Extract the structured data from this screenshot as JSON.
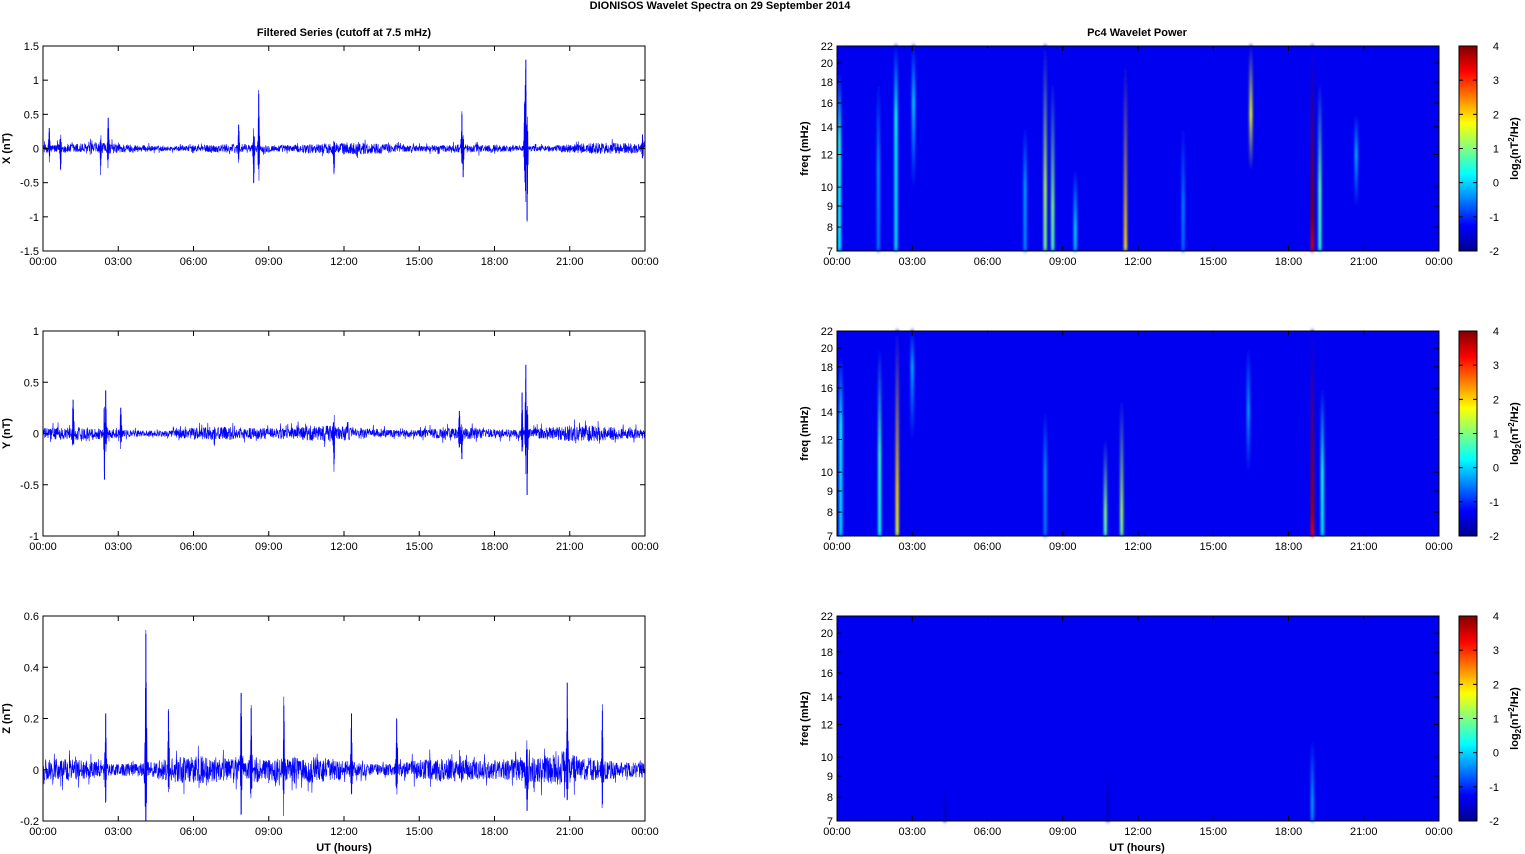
{
  "figure": {
    "title": "DIONISOS Wavelet Spectra on 29 September 2014",
    "left_column_title": "Filtered Series (cutoff at 7.5 mHz)",
    "right_column_title": "Pc4 Wavelet Power",
    "time_xlabel": "UT (hours)",
    "freq_ylabel": "freq (mHz)",
    "colorbar_label_base": "log",
    "colorbar_label_sub": "2",
    "colorbar_label_rest_a": "(nT",
    "colorbar_label_sup": "2",
    "colorbar_label_rest_b": "/Hz)"
  },
  "chart_data": [
    {
      "type": "line",
      "panel": "X",
      "ylabel": "X (nT)",
      "series_color": "#0000ff",
      "x_ticks": [
        "00:00",
        "03:00",
        "06:00",
        "09:00",
        "12:00",
        "15:00",
        "18:00",
        "21:00",
        "00:00"
      ],
      "x_range_hours": [
        0,
        24
      ],
      "ylim": [
        -1.5,
        1.5
      ],
      "y_ticks": [
        1.5,
        1,
        0.5,
        0,
        -0.5,
        -1,
        -1.5
      ],
      "y_tick_labels": [
        "1.5",
        "1",
        "0.5",
        "0",
        "-0.5",
        "-1",
        "-1.5"
      ],
      "noise_amplitude": 0.09,
      "spikes": [
        {
          "t": 0.25,
          "a": 0.3
        },
        {
          "t": 0.7,
          "a": -0.3
        },
        {
          "t": 2.6,
          "a": 0.45
        },
        {
          "t": 2.3,
          "a": -0.25
        },
        {
          "t": 8.6,
          "a": 0.8
        },
        {
          "t": 8.4,
          "a": -0.5
        },
        {
          "t": 7.8,
          "a": 0.35
        },
        {
          "t": 11.6,
          "a": -0.35
        },
        {
          "t": 16.7,
          "a": 0.5
        },
        {
          "t": 16.75,
          "a": -0.42
        },
        {
          "t": 19.25,
          "a": 1.3
        },
        {
          "t": 19.3,
          "a": -1.05
        },
        {
          "t": 19.2,
          "a": 0.65
        },
        {
          "t": 23.9,
          "a": 0.2
        }
      ]
    },
    {
      "type": "line",
      "panel": "Y",
      "ylabel": "Y (nT)",
      "series_color": "#0000ff",
      "x_ticks": [
        "00:00",
        "03:00",
        "06:00",
        "09:00",
        "12:00",
        "15:00",
        "18:00",
        "21:00",
        "00:00"
      ],
      "x_range_hours": [
        0,
        24
      ],
      "ylim": [
        -1,
        1
      ],
      "y_ticks": [
        1,
        0.5,
        0,
        -0.5,
        -1
      ],
      "y_tick_labels": [
        "1",
        "0.5",
        "0",
        "-0.5",
        "-1"
      ],
      "noise_amplitude": 0.08,
      "spikes": [
        {
          "t": 1.2,
          "a": 0.33
        },
        {
          "t": 2.5,
          "a": 0.42
        },
        {
          "t": 2.45,
          "a": -0.45
        },
        {
          "t": 3.1,
          "a": 0.25
        },
        {
          "t": 11.6,
          "a": -0.3
        },
        {
          "t": 16.6,
          "a": 0.22
        },
        {
          "t": 16.7,
          "a": -0.25
        },
        {
          "t": 19.25,
          "a": 0.67
        },
        {
          "t": 19.3,
          "a": -0.6
        },
        {
          "t": 19.1,
          "a": 0.4
        }
      ]
    },
    {
      "type": "line",
      "panel": "Z",
      "ylabel": "Z (nT)",
      "series_color": "#0000ff",
      "x_ticks": [
        "00:00",
        "03:00",
        "06:00",
        "09:00",
        "12:00",
        "15:00",
        "18:00",
        "21:00",
        "00:00"
      ],
      "x_range_hours": [
        0,
        24
      ],
      "ylim": [
        -0.2,
        0.6
      ],
      "y_ticks": [
        0.6,
        0.4,
        0.2,
        0,
        -0.2
      ],
      "y_tick_labels": [
        "0.6",
        "0.4",
        "0.2",
        "0",
        "-0.2"
      ],
      "noise_amplitude": 0.06,
      "spikes": [
        {
          "t": 4.1,
          "a": 0.53
        },
        {
          "t": 2.5,
          "a": 0.22
        },
        {
          "t": 5.0,
          "a": 0.23
        },
        {
          "t": 7.9,
          "a": 0.3
        },
        {
          "t": 8.3,
          "a": 0.24
        },
        {
          "t": 9.6,
          "a": 0.25
        },
        {
          "t": 20.9,
          "a": 0.34
        },
        {
          "t": 22.3,
          "a": 0.23
        },
        {
          "t": 19.3,
          "a": -0.16
        },
        {
          "t": 12.3,
          "a": 0.22
        },
        {
          "t": 14.1,
          "a": 0.2
        }
      ]
    },
    {
      "type": "heatmap",
      "panel": "X wavelet power",
      "ylabel": "freq (mHz)",
      "x_ticks": [
        "00:00",
        "03:00",
        "06:00",
        "09:00",
        "12:00",
        "15:00",
        "18:00",
        "21:00",
        "00:00"
      ],
      "x_range_hours": [
        0,
        24
      ],
      "y_ticks": [
        22,
        20,
        18,
        16,
        14,
        12,
        10,
        9,
        8,
        7
      ],
      "y_tick_labels": [
        "22",
        "20",
        "18",
        "16",
        "14",
        "12",
        "10",
        "9",
        "8",
        "7"
      ],
      "ylim_mhz": [
        7,
        22
      ],
      "y_scale": "log",
      "colorbar": {
        "range": [
          -2,
          4
        ],
        "ticks": [
          "4",
          "3",
          "2",
          "1",
          "0",
          "-1",
          "-2"
        ]
      },
      "background_level": -2,
      "streaks": [
        {
          "t": 0.1,
          "fmin": 7,
          "fmax": 19,
          "peak": 0.5,
          "fpk": 13
        },
        {
          "t": 1.65,
          "fmin": 7,
          "fmax": 18,
          "peak": -0.4,
          "fpk": 11
        },
        {
          "t": 2.35,
          "fmin": 7,
          "fmax": 22,
          "peak": 0.3,
          "fpk": 15
        },
        {
          "t": 3.05,
          "fmin": 10,
          "fmax": 22,
          "peak": 0.0,
          "fpk": 16
        },
        {
          "t": 7.5,
          "fmin": 7,
          "fmax": 14,
          "peak": -0.3,
          "fpk": 10
        },
        {
          "t": 8.3,
          "fmin": 7,
          "fmax": 22,
          "peak": 1.3,
          "fpk": 10
        },
        {
          "t": 8.6,
          "fmin": 7,
          "fmax": 18,
          "peak": 1.0,
          "fpk": 9
        },
        {
          "t": 9.5,
          "fmin": 7,
          "fmax": 11,
          "peak": 0.0,
          "fpk": 8
        },
        {
          "t": 11.5,
          "fmin": 7,
          "fmax": 20,
          "peak": 2.0,
          "fpk": 7.3
        },
        {
          "t": 13.8,
          "fmin": 7,
          "fmax": 14,
          "peak": -0.5,
          "fpk": 9
        },
        {
          "t": 16.5,
          "fmin": 11,
          "fmax": 22,
          "peak": 1.6,
          "fpk": 15
        },
        {
          "t": 18.95,
          "fmin": 7,
          "fmax": 22,
          "peak": 4.0,
          "fpk": 8.5
        },
        {
          "t": 19.25,
          "fmin": 7,
          "fmax": 18,
          "peak": 0.8,
          "fpk": 10
        },
        {
          "t": 20.7,
          "fmin": 9,
          "fmax": 15,
          "peak": -0.2,
          "fpk": 12
        }
      ]
    },
    {
      "type": "heatmap",
      "panel": "Y wavelet power",
      "ylabel": "freq (mHz)",
      "x_ticks": [
        "00:00",
        "03:00",
        "06:00",
        "09:00",
        "12:00",
        "15:00",
        "18:00",
        "21:00",
        "00:00"
      ],
      "x_range_hours": [
        0,
        24
      ],
      "y_ticks": [
        22,
        20,
        18,
        16,
        14,
        12,
        10,
        9,
        8,
        7
      ],
      "y_tick_labels": [
        "22",
        "20",
        "18",
        "16",
        "14",
        "12",
        "10",
        "9",
        "8",
        "7"
      ],
      "ylim_mhz": [
        7,
        22
      ],
      "y_scale": "log",
      "colorbar": {
        "range": [
          -2,
          4
        ],
        "ticks": [
          "4",
          "3",
          "2",
          "1",
          "0",
          "-1",
          "-2"
        ]
      },
      "background_level": -2,
      "streaks": [
        {
          "t": 0.15,
          "fmin": 7,
          "fmax": 19,
          "peak": 0.3,
          "fpk": 13
        },
        {
          "t": 1.7,
          "fmin": 7,
          "fmax": 20,
          "peak": 0.6,
          "fpk": 11
        },
        {
          "t": 2.4,
          "fmin": 7,
          "fmax": 22,
          "peak": 2.0,
          "fpk": 9
        },
        {
          "t": 3.0,
          "fmin": 12,
          "fmax": 22,
          "peak": -0.2,
          "fpk": 18
        },
        {
          "t": 8.3,
          "fmin": 7,
          "fmax": 14,
          "peak": -0.4,
          "fpk": 10
        },
        {
          "t": 10.7,
          "fmin": 7,
          "fmax": 12,
          "peak": 1.0,
          "fpk": 8
        },
        {
          "t": 11.35,
          "fmin": 7,
          "fmax": 15,
          "peak": 1.2,
          "fpk": 8
        },
        {
          "t": 16.4,
          "fmin": 10,
          "fmax": 20,
          "peak": -0.3,
          "fpk": 14
        },
        {
          "t": 18.95,
          "fmin": 7,
          "fmax": 22,
          "peak": 3.8,
          "fpk": 8
        },
        {
          "t": 19.35,
          "fmin": 7,
          "fmax": 16,
          "peak": 0.4,
          "fpk": 10
        }
      ]
    },
    {
      "type": "heatmap",
      "panel": "Z wavelet power",
      "ylabel": "freq (mHz)",
      "x_ticks": [
        "00:00",
        "03:00",
        "06:00",
        "09:00",
        "12:00",
        "15:00",
        "18:00",
        "21:00",
        "00:00"
      ],
      "x_range_hours": [
        0,
        24
      ],
      "y_ticks": [
        22,
        20,
        18,
        16,
        14,
        12,
        10,
        9,
        8,
        7
      ],
      "y_tick_labels": [
        "22",
        "20",
        "18",
        "16",
        "14",
        "12",
        "10",
        "9",
        "8",
        "7"
      ],
      "ylim_mhz": [
        7,
        22
      ],
      "y_scale": "log",
      "colorbar": {
        "range": [
          -2,
          4
        ],
        "ticks": [
          "4",
          "3",
          "2",
          "1",
          "0",
          "-1",
          "-2"
        ]
      },
      "background_level": -2,
      "streaks": [
        {
          "t": 18.95,
          "fmin": 7,
          "fmax": 11,
          "peak": -0.3,
          "fpk": 7.8
        },
        {
          "t": 4.3,
          "fmin": 7,
          "fmax": 8.5,
          "peak": -1.6,
          "fpk": 7.5
        },
        {
          "t": 10.8,
          "fmin": 7,
          "fmax": 9,
          "peak": -1.6,
          "fpk": 8
        }
      ]
    }
  ]
}
